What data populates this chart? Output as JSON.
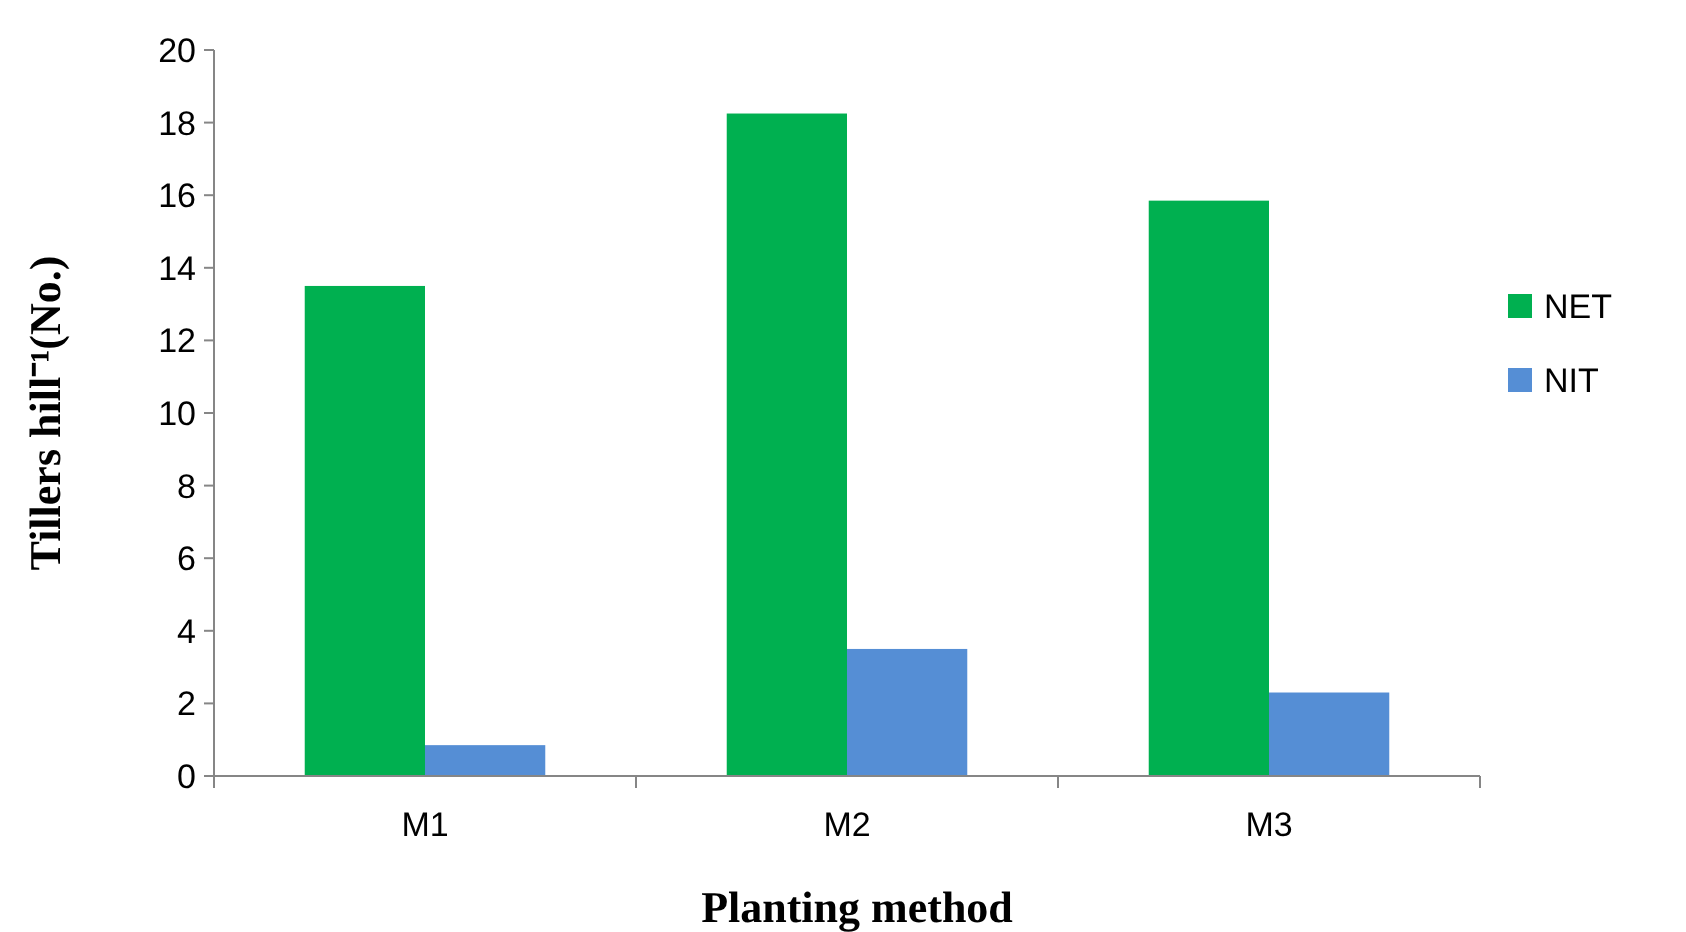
{
  "chart_data": {
    "type": "bar",
    "xlabel": "Planting method",
    "ylabel": "Tillers hill⁻¹(No.)",
    "categories": [
      "M1",
      "M2",
      "M3"
    ],
    "series": [
      {
        "name": "NET",
        "color": "#00b050",
        "values": [
          13.5,
          18.25,
          15.85
        ]
      },
      {
        "name": "NIT",
        "color": "#558ed5",
        "values": [
          0.85,
          3.5,
          2.3
        ]
      }
    ],
    "ylim": [
      0,
      20
    ],
    "yticks": [
      0,
      2,
      4,
      6,
      8,
      10,
      12,
      14,
      16,
      18,
      20
    ],
    "legend": "right",
    "grid": false
  }
}
